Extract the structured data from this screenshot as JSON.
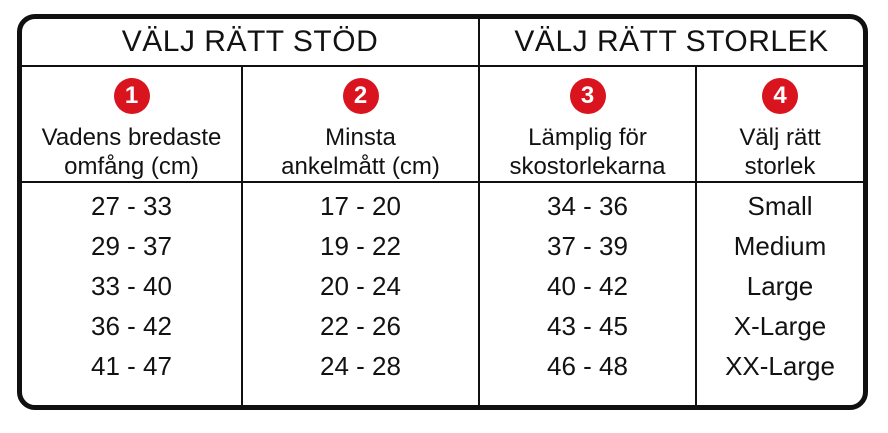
{
  "accent_color": "#da141e",
  "border_color": "#101010",
  "chart_data": {
    "type": "table",
    "sections": [
      {
        "title": "VÄLJ RÄTT STÖD",
        "spans_columns": 2
      },
      {
        "title": "VÄLJ RÄTT STORLEK",
        "spans_columns": 2
      }
    ],
    "columns": [
      {
        "number": "1",
        "label": "Vadens bredaste omfång (cm)",
        "label_lines": [
          "Vadens bredaste",
          "omfång (cm)"
        ]
      },
      {
        "number": "2",
        "label": "Minsta ankelmått (cm)",
        "label_lines": [
          "Minsta",
          "ankelmått (cm)"
        ]
      },
      {
        "number": "3",
        "label": "Lämplig för skostorlekarna",
        "label_lines": [
          "Lämplig för",
          "skostorlekarna"
        ]
      },
      {
        "number": "4",
        "label": "Välj rätt storlek",
        "label_lines": [
          "Välj rätt",
          "storlek"
        ]
      }
    ],
    "rows": [
      [
        "27 - 33",
        "17 - 20",
        "34 - 36",
        "Small"
      ],
      [
        "29 - 37",
        "19 - 22",
        "37 - 39",
        "Medium"
      ],
      [
        "33 - 40",
        "20 - 24",
        "40 - 42",
        "Large"
      ],
      [
        "36 - 42",
        "22 - 26",
        "43 - 45",
        "X-Large"
      ],
      [
        "41 - 47",
        "24 - 28",
        "46 - 48",
        "XX-Large"
      ]
    ]
  }
}
